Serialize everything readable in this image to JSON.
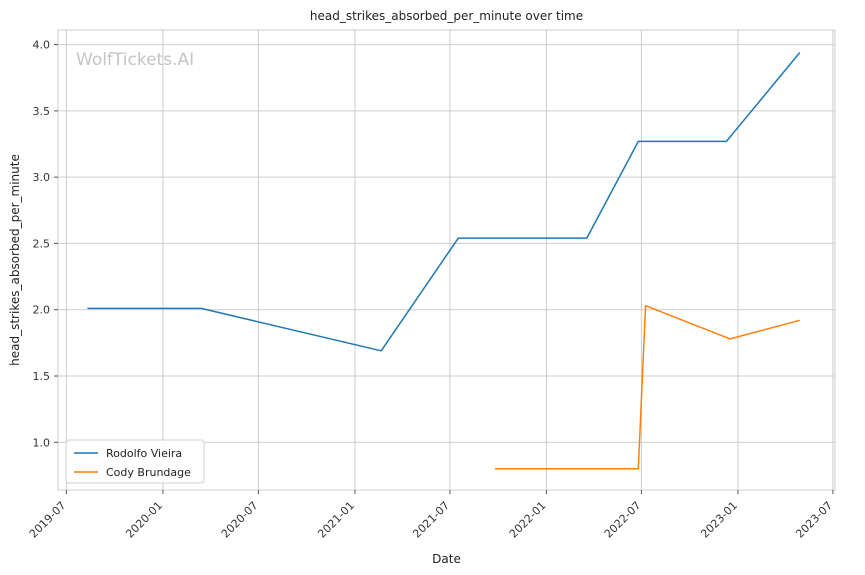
{
  "watermark": "WolfTickets.AI",
  "chart_data": {
    "type": "line",
    "title": "head_strikes_absorbed_per_minute over time",
    "xlabel": "Date",
    "ylabel": "head_strikes_absorbed_per_minute",
    "x_type": "date",
    "xlim": [
      "2019-06-15",
      "2023-07-05"
    ],
    "ylim": [
      0.64,
      4.11
    ],
    "x_ticks": [
      "2019-07",
      "2020-01",
      "2020-07",
      "2021-01",
      "2021-07",
      "2022-01",
      "2022-07",
      "2023-01",
      "2023-07"
    ],
    "y_ticks": [
      "1.0",
      "1.5",
      "2.0",
      "2.5",
      "3.0",
      "3.5",
      "4.0"
    ],
    "grid": true,
    "legend_position": "lower-left",
    "series": [
      {
        "name": "Rodolfo Vieira",
        "color": "#1f77b4",
        "x": [
          "2019-08-10",
          "2020-03-14",
          "2021-02-20",
          "2021-07-17",
          "2022-03-19",
          "2022-06-25",
          "2022-12-10",
          "2023-04-29"
        ],
        "y": [
          2.01,
          2.01,
          1.69,
          2.54,
          2.54,
          3.27,
          3.27,
          3.94
        ]
      },
      {
        "name": "Cody Brundage",
        "color": "#ff7f0e",
        "x": [
          "2021-09-25",
          "2022-06-25",
          "2022-07-09",
          "2022-12-17",
          "2023-04-29"
        ],
        "y": [
          0.8,
          0.8,
          2.03,
          1.78,
          1.92
        ]
      }
    ]
  }
}
